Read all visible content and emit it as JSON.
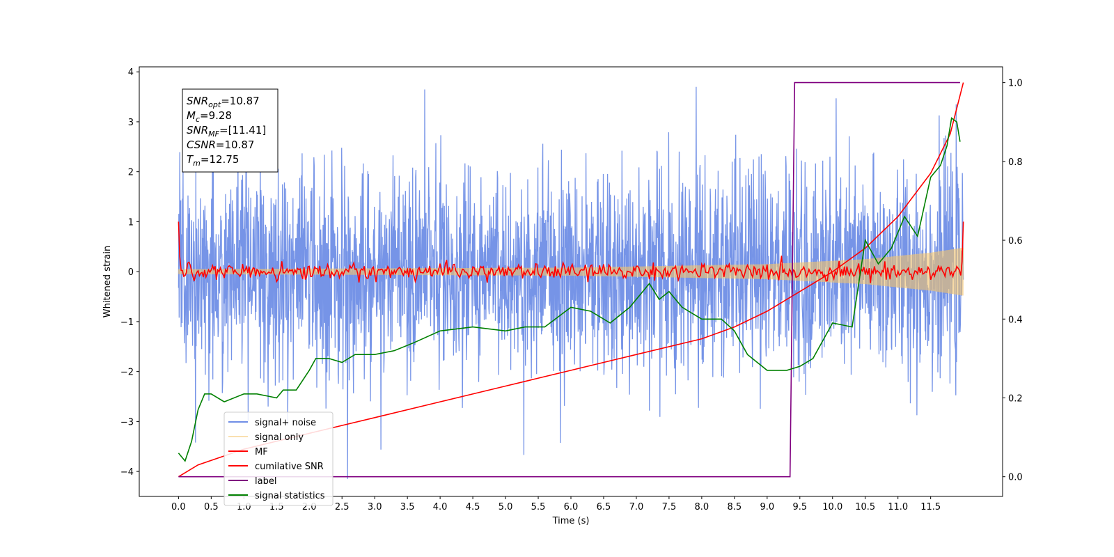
{
  "chart_data": {
    "type": "line",
    "xlabel": "Time (s)",
    "ylabel": "Whitened strain",
    "xlim": [
      -0.6,
      12.6
    ],
    "ylim": [
      -4.5,
      4.1
    ],
    "y2lim": [
      -0.05,
      1.04
    ],
    "x_ticks": [
      "0.0",
      "0.5",
      "1.0",
      "1.5",
      "2.0",
      "2.5",
      "3.0",
      "3.5",
      "4.0",
      "4.5",
      "5.0",
      "5.5",
      "6.0",
      "6.5",
      "7.0",
      "7.5",
      "8.0",
      "8.5",
      "9.0",
      "9.5",
      "10.0",
      "10.5",
      "11.0",
      "11.5"
    ],
    "y_ticks": [
      "4",
      "3",
      "2",
      "1",
      "0",
      "−1",
      "−2",
      "−3",
      "−4"
    ],
    "y2_ticks": [
      "1.0",
      "0.8",
      "0.6",
      "0.4",
      "0.2",
      "0.0"
    ],
    "grid": false,
    "legend_position": "lower-left",
    "series": [
      {
        "name": "signal+ noise",
        "color": "#6f8ee6",
        "axis": "left",
        "kind": "noise",
        "x_range": [
          0,
          12
        ],
        "spread_std": 1.05,
        "max": 3.7,
        "min": -4.15
      },
      {
        "name": "signal only",
        "color": "#f5c46b",
        "axis": "left",
        "kind": "chirp",
        "x_range": [
          0,
          12
        ],
        "envelope": [
          [
            0,
            0.05
          ],
          [
            6,
            0.08
          ],
          [
            9,
            0.15
          ],
          [
            10.5,
            0.25
          ],
          [
            11.5,
            0.38
          ],
          [
            12,
            0.48
          ]
        ]
      },
      {
        "name": "MF",
        "color": "#ff0000",
        "axis": "left",
        "kind": "oscillation",
        "x_range": [
          0,
          12
        ],
        "start_value": 1.0,
        "end_value": 1.0,
        "amplitude": 0.12
      },
      {
        "name": "cumilative SNR",
        "color": "#ff0000",
        "axis": "right",
        "x": [
          0,
          0.3,
          1,
          2,
          3,
          4,
          5,
          6,
          7,
          8,
          8.5,
          9,
          9.5,
          10,
          10.5,
          11,
          11.5,
          11.8,
          12
        ],
        "y": [
          0.0,
          0.03,
          0.07,
          0.11,
          0.15,
          0.19,
          0.23,
          0.27,
          0.31,
          0.35,
          0.38,
          0.42,
          0.47,
          0.52,
          0.58,
          0.66,
          0.77,
          0.87,
          1.0
        ]
      },
      {
        "name": "label",
        "color": "#800080",
        "axis": "right",
        "x": [
          0,
          9.35,
          9.42,
          11.95
        ],
        "y": [
          0,
          0,
          1,
          1
        ]
      },
      {
        "name": "signal statistics",
        "color": "#008000",
        "axis": "right",
        "x": [
          0,
          0.1,
          0.2,
          0.3,
          0.4,
          0.5,
          0.7,
          1.0,
          1.2,
          1.5,
          1.6,
          1.8,
          2.0,
          2.1,
          2.3,
          2.5,
          2.7,
          3.0,
          3.3,
          3.6,
          4.0,
          4.5,
          5.0,
          5.3,
          5.6,
          6.0,
          6.3,
          6.6,
          6.9,
          7.2,
          7.35,
          7.5,
          7.7,
          8.0,
          8.3,
          8.5,
          8.7,
          9.0,
          9.3,
          9.5,
          9.7,
          10.0,
          10.3,
          10.5,
          10.7,
          10.9,
          11.1,
          11.3,
          11.5,
          11.65,
          11.75,
          11.82,
          11.9,
          11.95
        ],
        "y": [
          0.06,
          0.04,
          0.09,
          0.17,
          0.21,
          0.21,
          0.19,
          0.21,
          0.21,
          0.2,
          0.22,
          0.22,
          0.27,
          0.3,
          0.3,
          0.29,
          0.31,
          0.31,
          0.32,
          0.34,
          0.37,
          0.38,
          0.37,
          0.38,
          0.38,
          0.43,
          0.42,
          0.39,
          0.43,
          0.49,
          0.45,
          0.47,
          0.43,
          0.4,
          0.4,
          0.37,
          0.31,
          0.27,
          0.27,
          0.28,
          0.3,
          0.39,
          0.38,
          0.6,
          0.54,
          0.58,
          0.66,
          0.61,
          0.76,
          0.79,
          0.84,
          0.91,
          0.9,
          0.85
        ]
      }
    ],
    "annotation": {
      "lines": [
        {
          "sym": "SNR",
          "sub": "opt",
          "value": "=10.87"
        },
        {
          "sym": "M",
          "sub": "c",
          "value": "=9.28"
        },
        {
          "sym": "SNR",
          "sub": "MF",
          "value": "=[11.41]"
        },
        {
          "sym": "CSNR",
          "sub": "",
          "value": "=10.87"
        },
        {
          "sym": "T",
          "sub": "m",
          "value": "=12.75"
        }
      ]
    }
  }
}
